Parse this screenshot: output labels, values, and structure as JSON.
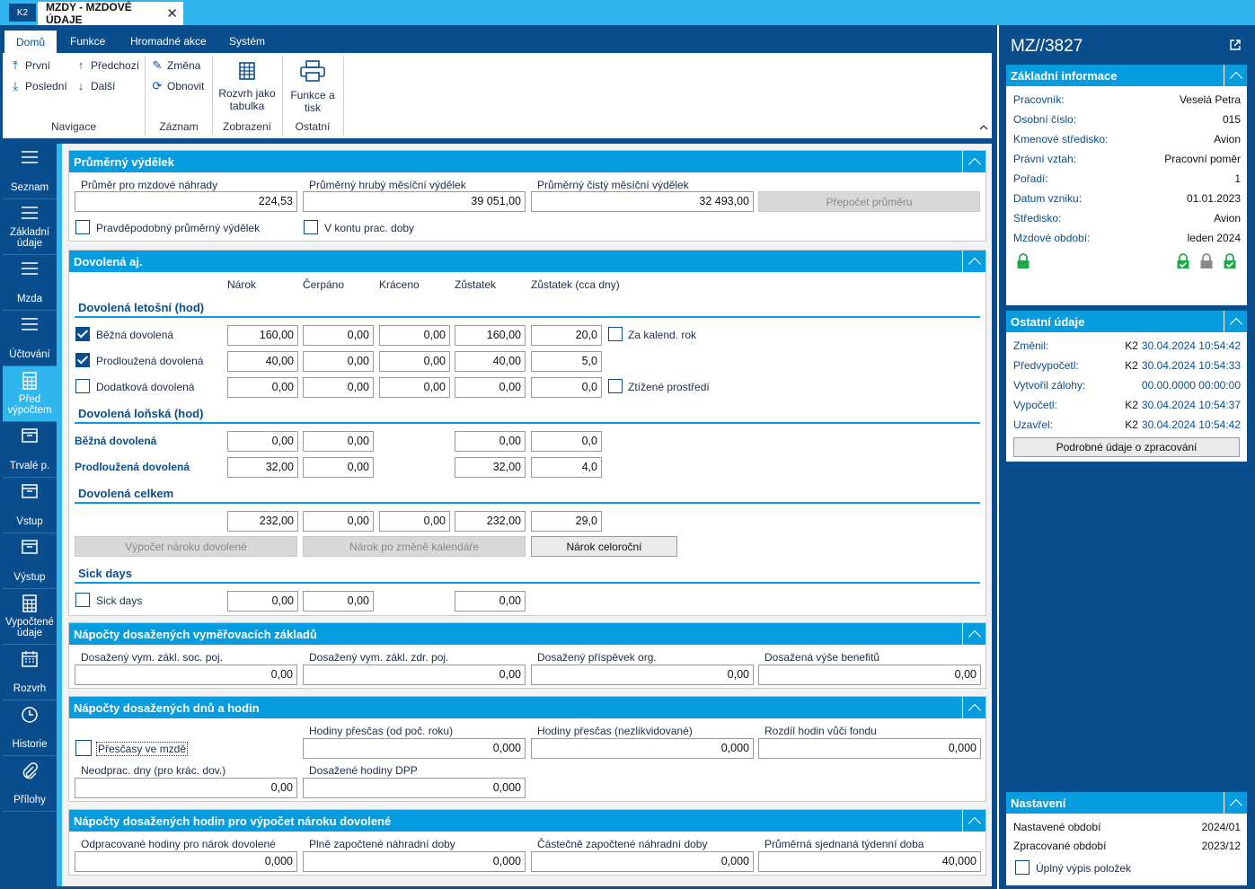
{
  "window": {
    "logo": "K2",
    "tab_title": "MZDY - MZDOVÉ ÚDAJE",
    "close": "✕"
  },
  "ribbon": {
    "tabs": [
      "Domů",
      "Funkce",
      "Hromadné akce",
      "Systém"
    ],
    "nav": {
      "first": "První",
      "prev": "Předchozí",
      "last": "Poslední",
      "next": "Další",
      "group": "Navigace"
    },
    "record": {
      "change": "Změna",
      "refresh": "Obnovit",
      "group": "Záznam"
    },
    "view": {
      "table_line1": "Rozvrh jako",
      "table_line2": "tabulka",
      "group": "Zobrazení"
    },
    "other": {
      "print_line1": "Funkce a",
      "print_line2": "tisk",
      "group": "Ostatní"
    },
    "collapse": "^"
  },
  "sidenav": [
    {
      "label": "Seznam",
      "icon": "list-icon"
    },
    {
      "label": "Základní údaje",
      "icon": "list-icon"
    },
    {
      "label": "Mzda",
      "icon": "list-icon"
    },
    {
      "label": "Účtování",
      "icon": "list-icon"
    },
    {
      "label": "Před výpočtem",
      "icon": "calculator-icon"
    },
    {
      "label": "Trvalé p.",
      "icon": "box-icon"
    },
    {
      "label": "Vstup",
      "icon": "box-icon"
    },
    {
      "label": "Výstup",
      "icon": "box-icon"
    },
    {
      "label": "Vypočtené údaje",
      "icon": "calculator-icon"
    },
    {
      "label": "Rozvrh",
      "icon": "calendar-icon"
    },
    {
      "label": "Historie",
      "icon": "clock-icon"
    },
    {
      "label": "Přílohy",
      "icon": "paperclip-icon"
    }
  ],
  "avg": {
    "title": "Průměrný výdělek",
    "f1_label": "Průměr pro mzdové náhrady",
    "f1": "224,53",
    "f2_label": "Průměrný hrubý měsíční výdělek",
    "f2": "39 051,00",
    "f3_label": "Průměrný čistý měsíční výdělek",
    "f3": "32 493,00",
    "recalc": "Přepočet  průměru",
    "cb1": "Pravděpodobný průměrný výdělek",
    "cb2": "V kontu prac. doby"
  },
  "vac": {
    "title": "Dovolená aj.",
    "cols": [
      "Nárok",
      "Čerpáno",
      "Kráceno",
      "Zůstatek",
      "Zůstatek (cca dny)"
    ],
    "cur_title": "Dovolená letošní (hod)",
    "cur_rows": [
      {
        "label": "Běžná dovolená",
        "checked": true,
        "vals": [
          "160,00",
          "0,00",
          "0,00",
          "160,00",
          "20,0"
        ],
        "extra": "Za kalend. rok"
      },
      {
        "label": "Prodloužená dovolená",
        "checked": true,
        "vals": [
          "40,00",
          "0,00",
          "0,00",
          "40,00",
          "5,0"
        ],
        "extra": ""
      },
      {
        "label": "Dodatková dovolená",
        "checked": false,
        "vals": [
          "0,00",
          "0,00",
          "0,00",
          "0,00",
          "0,0"
        ],
        "extra": "Ztížené prostředí"
      }
    ],
    "prev_title": "Dovolená loňská (hod)",
    "prev_rows": [
      {
        "label": "Běžná dovolená",
        "vals": [
          "0,00",
          "0,00",
          "0,00",
          "0,0"
        ]
      },
      {
        "label": "Prodloužená dovolená",
        "vals": [
          "32,00",
          "0,00",
          "32,00",
          "4,0"
        ]
      }
    ],
    "total_title": "Dovolená celkem",
    "total": [
      "232,00",
      "0,00",
      "0,00",
      "232,00",
      "29,0"
    ],
    "btn1": "Výpočet nároku dovolené",
    "btn2": "Nárok po změně kalendáře",
    "btn3": "Nárok celoroční",
    "sick_title": "Sick days",
    "sick_label": "Sick days",
    "sick": [
      "0,00",
      "0,00",
      "0,00"
    ]
  },
  "base": {
    "title": "Nápočty dosažených vyměřovacích základů",
    "labels": [
      "Dosažený vym. zákl. soc. poj.",
      "Dosažený vym. zákl. zdr. poj.",
      "Dosažený příspěvek org.",
      "Dosažená výše benefitů"
    ],
    "vals": [
      "0,00",
      "0,00",
      "0,00",
      "0,00"
    ]
  },
  "days": {
    "title": "Nápočty dosažených dnů a hodin",
    "overtime_cb": "Přesčasy ve mzdě",
    "h1_label": "Hodiny přesčas (od poč. roku)",
    "h1": "0,000",
    "h2_label": "Hodiny přesčas (nezlikvidované)",
    "h2": "0,000",
    "h3_label": "Rozdíl hodin vůči fondu",
    "h3": "0,000",
    "d1_label": "Neodprac. dny (pro krác. dov.)",
    "d1": "0,00",
    "d2_label": "Dosažené hodiny DPP",
    "d2": "0,000"
  },
  "hours": {
    "title": "Nápočty dosažených hodin pro výpočet nároku dovolené",
    "labels": [
      "Odpracované hodiny pro nárok dovolené",
      "Plně započtené náhradní doby",
      "Částečně započtené náhradní doby",
      "Průměrná sjednaná týdenní doba"
    ],
    "vals": [
      "0,000",
      "0,000",
      "0,000",
      "40,000"
    ]
  },
  "right": {
    "record_id": "MZ//3827",
    "basic_title": "Základní informace",
    "basic": [
      {
        "k": "Pracovník:",
        "v": "Veselá Petra"
      },
      {
        "k": "Osobní číslo:",
        "v": "015"
      },
      {
        "k": "Kmenové středisko:",
        "v": "Avion"
      },
      {
        "k": "Právní vztah:",
        "v": "Pracovní poměr"
      },
      {
        "k": "Pořadí:",
        "v": "1"
      },
      {
        "k": "Datum vzniku:",
        "v": "01.01.2023"
      },
      {
        "k": "Středisko:",
        "v": "Avion"
      },
      {
        "k": "Mzdové období:",
        "v": "leden 2024"
      }
    ],
    "other_title": "Ostatní údaje",
    "other": [
      {
        "k": "Změnil:",
        "u": "K2",
        "v": "30.04.2024 10:54:42"
      },
      {
        "k": "Předvypočetl:",
        "u": "K2",
        "v": "30.04.2024 10:54:33"
      },
      {
        "k": "Vytvořil zálohy:",
        "u": "",
        "v": "00.00.0000 00:00:00"
      },
      {
        "k": "Vypočetl:",
        "u": "K2",
        "v": "30.04.2024 10:54:37"
      },
      {
        "k": "Uzavřel:",
        "u": "K2",
        "v": "30.04.2024 10:54:42"
      }
    ],
    "detail_btn": "Podrobné údaje o zpracování",
    "settings_title": "Nastavení",
    "settings": [
      {
        "k": "Nastavené období",
        "v": "2024/01"
      },
      {
        "k": "Zpracované období",
        "v": "2023/12"
      }
    ],
    "full_cb": "Úplný výpis položek"
  },
  "colors": {
    "brand": "#0a4d8c",
    "accent": "#069de0",
    "topbar": "#2fb6ee",
    "lock": "#1fa84a"
  }
}
